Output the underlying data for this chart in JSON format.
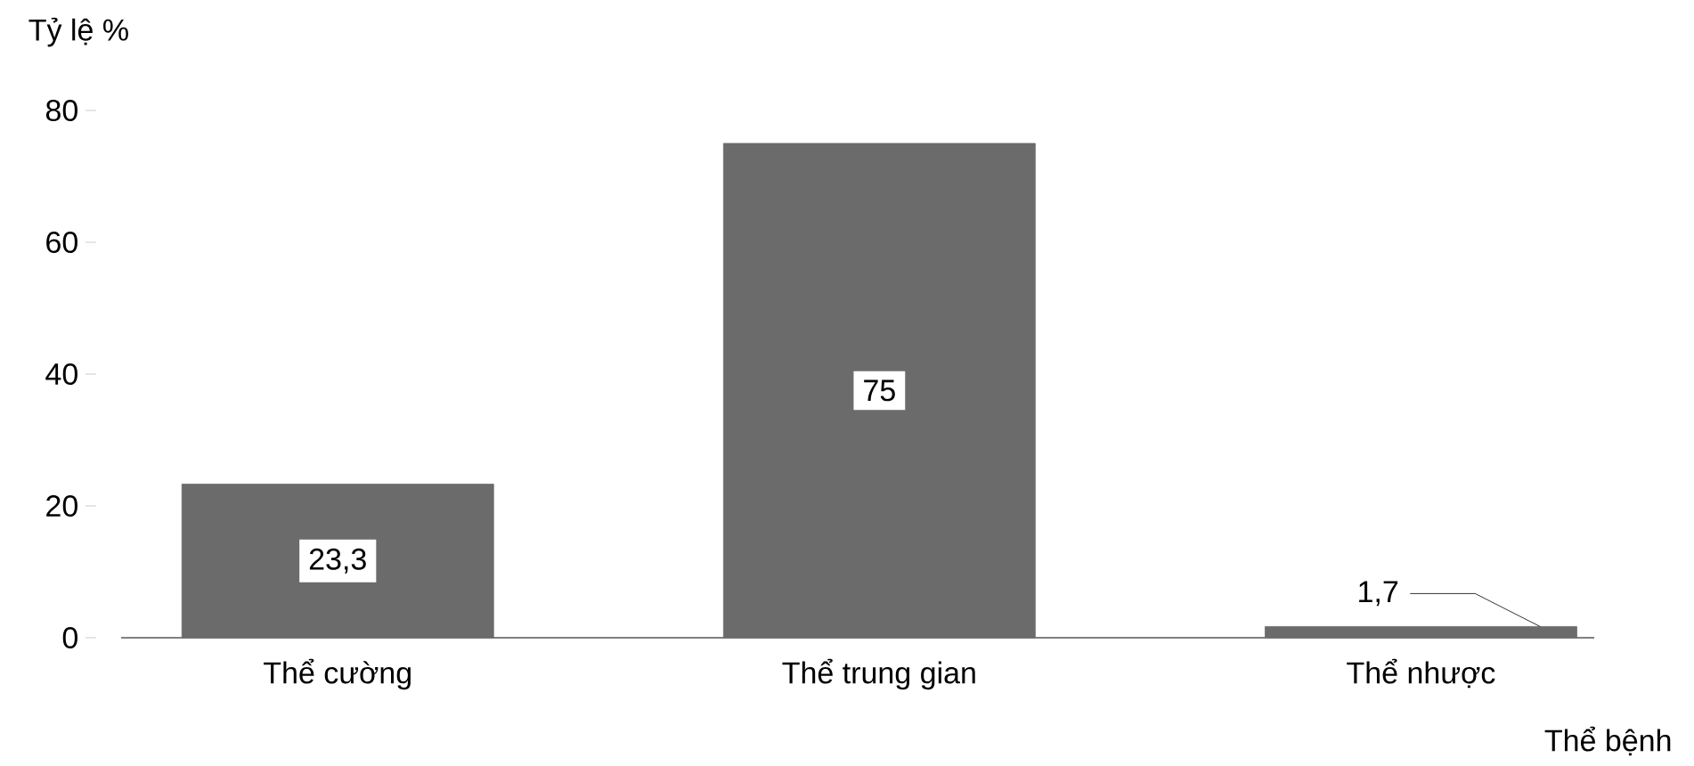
{
  "chart_data": {
    "type": "bar",
    "xlabel": "Thể bệnh",
    "ylabel": "Tỷ lệ %",
    "categories": [
      "Thể cường",
      "Thể trung gian",
      "Thể nhược"
    ],
    "values": [
      23.3,
      75,
      1.7
    ],
    "value_labels": [
      "23,3",
      "75",
      "1,7"
    ],
    "color": "#6b6b6b",
    "ylim": [
      0,
      80
    ],
    "yticks": [
      0,
      20,
      40,
      60,
      80
    ],
    "grid": false
  }
}
